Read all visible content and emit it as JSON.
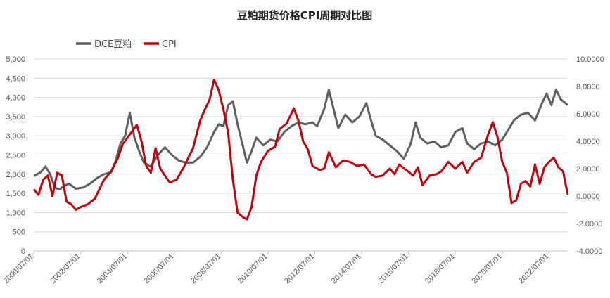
{
  "chart_data": {
    "type": "line",
    "title": "豆粕期货价格CPI周期对比图",
    "xlabel": "",
    "ylabel": "",
    "x_tick_labels": [
      "2000/07/01",
      "2002/07/01",
      "2004/07/01",
      "2006/07/01",
      "2008/07/01",
      "2010/07/01",
      "2012/07/01",
      "2014/07/01",
      "2016/07/01",
      "2018/07/01",
      "2020/07/01",
      "2022/07/01"
    ],
    "y_left": {
      "range": [
        0,
        5000
      ],
      "ticks": [
        "0",
        "500",
        "1,000",
        "1,500",
        "2,000",
        "2,500",
        "3,000",
        "3,500",
        "4,000",
        "4,500",
        "5,000"
      ]
    },
    "y_right": {
      "range": [
        -4,
        10
      ],
      "ticks": [
        "-4.0000",
        "-2.0000",
        "0.0000",
        "2.0000",
        "4.0000",
        "6.0000",
        "8.0000",
        "10.0000"
      ]
    },
    "x_range": [
      2000.5,
      2023.3
    ],
    "grid": true,
    "legend_position": "top-left",
    "series": [
      {
        "name": "DCE豆粕",
        "axis": "left",
        "color": "#5f5f5f",
        "points": [
          [
            2000.5,
            1950
          ],
          [
            2000.8,
            2050
          ],
          [
            2001.0,
            2200
          ],
          [
            2001.2,
            2000
          ],
          [
            2001.4,
            1650
          ],
          [
            2001.6,
            1600
          ],
          [
            2001.8,
            1700
          ],
          [
            2002.0,
            1750
          ],
          [
            2002.3,
            1620
          ],
          [
            2002.6,
            1650
          ],
          [
            2002.9,
            1750
          ],
          [
            2003.2,
            1900
          ],
          [
            2003.5,
            2000
          ],
          [
            2003.8,
            2050
          ],
          [
            2004.0,
            2350
          ],
          [
            2004.2,
            2800
          ],
          [
            2004.4,
            3000
          ],
          [
            2004.6,
            3600
          ],
          [
            2004.8,
            2950
          ],
          [
            2005.0,
            2600
          ],
          [
            2005.2,
            2300
          ],
          [
            2005.5,
            2200
          ],
          [
            2005.8,
            2500
          ],
          [
            2006.1,
            2700
          ],
          [
            2006.4,
            2500
          ],
          [
            2006.7,
            2350
          ],
          [
            2007.0,
            2300
          ],
          [
            2007.3,
            2300
          ],
          [
            2007.6,
            2450
          ],
          [
            2007.9,
            2700
          ],
          [
            2008.2,
            3100
          ],
          [
            2008.4,
            3300
          ],
          [
            2008.6,
            3250
          ],
          [
            2008.8,
            3800
          ],
          [
            2009.0,
            3900
          ],
          [
            2009.2,
            3300
          ],
          [
            2009.4,
            2800
          ],
          [
            2009.6,
            2300
          ],
          [
            2009.8,
            2600
          ],
          [
            2010.0,
            2950
          ],
          [
            2010.3,
            2750
          ],
          [
            2010.6,
            2900
          ],
          [
            2010.9,
            2850
          ],
          [
            2011.2,
            3100
          ],
          [
            2011.5,
            3250
          ],
          [
            2011.8,
            3350
          ],
          [
            2012.1,
            3300
          ],
          [
            2012.4,
            3350
          ],
          [
            2012.6,
            3250
          ],
          [
            2012.9,
            3700
          ],
          [
            2013.1,
            4200
          ],
          [
            2013.3,
            3700
          ],
          [
            2013.5,
            3200
          ],
          [
            2013.8,
            3550
          ],
          [
            2014.1,
            3350
          ],
          [
            2014.4,
            3500
          ],
          [
            2014.7,
            3850
          ],
          [
            2014.9,
            3400
          ],
          [
            2015.1,
            3000
          ],
          [
            2015.4,
            2900
          ],
          [
            2015.7,
            2750
          ],
          [
            2016.0,
            2600
          ],
          [
            2016.3,
            2400
          ],
          [
            2016.6,
            2800
          ],
          [
            2016.8,
            3350
          ],
          [
            2017.0,
            2950
          ],
          [
            2017.3,
            2800
          ],
          [
            2017.6,
            2850
          ],
          [
            2017.9,
            2700
          ],
          [
            2018.2,
            2750
          ],
          [
            2018.5,
            3100
          ],
          [
            2018.8,
            3200
          ],
          [
            2019.0,
            2800
          ],
          [
            2019.3,
            2650
          ],
          [
            2019.6,
            2800
          ],
          [
            2019.9,
            2850
          ],
          [
            2020.2,
            2750
          ],
          [
            2020.5,
            2900
          ],
          [
            2020.8,
            3200
          ],
          [
            2021.0,
            3400
          ],
          [
            2021.3,
            3550
          ],
          [
            2021.6,
            3600
          ],
          [
            2021.9,
            3400
          ],
          [
            2022.2,
            3850
          ],
          [
            2022.4,
            4100
          ],
          [
            2022.6,
            3800
          ],
          [
            2022.8,
            4200
          ],
          [
            2023.0,
            3950
          ],
          [
            2023.3,
            3800
          ]
        ]
      },
      {
        "name": "CPI",
        "axis": "right",
        "color": "#c0000d",
        "points": [
          [
            2000.5,
            0.5
          ],
          [
            2000.7,
            0.1
          ],
          [
            2000.9,
            1.2
          ],
          [
            2001.1,
            1.5
          ],
          [
            2001.3,
            0.0
          ],
          [
            2001.5,
            1.7
          ],
          [
            2001.7,
            1.5
          ],
          [
            2001.9,
            -0.4
          ],
          [
            2002.1,
            -0.6
          ],
          [
            2002.3,
            -1.0
          ],
          [
            2002.5,
            -0.8
          ],
          [
            2002.8,
            -0.6
          ],
          [
            2003.1,
            -0.2
          ],
          [
            2003.3,
            0.5
          ],
          [
            2003.5,
            1.2
          ],
          [
            2003.8,
            1.8
          ],
          [
            2004.1,
            2.8
          ],
          [
            2004.3,
            3.8
          ],
          [
            2004.6,
            4.5
          ],
          [
            2004.9,
            5.2
          ],
          [
            2005.1,
            4.0
          ],
          [
            2005.3,
            2.2
          ],
          [
            2005.5,
            1.7
          ],
          [
            2005.7,
            3.5
          ],
          [
            2005.9,
            2.0
          ],
          [
            2006.1,
            1.5
          ],
          [
            2006.3,
            1.0
          ],
          [
            2006.6,
            1.2
          ],
          [
            2006.9,
            2.1
          ],
          [
            2007.1,
            2.8
          ],
          [
            2007.3,
            3.5
          ],
          [
            2007.6,
            5.5
          ],
          [
            2007.8,
            6.3
          ],
          [
            2008.0,
            7.0
          ],
          [
            2008.2,
            8.5
          ],
          [
            2008.4,
            7.7
          ],
          [
            2008.6,
            6.3
          ],
          [
            2008.8,
            4.6
          ],
          [
            2009.0,
            1.2
          ],
          [
            2009.2,
            -1.2
          ],
          [
            2009.4,
            -1.5
          ],
          [
            2009.6,
            -1.7
          ],
          [
            2009.8,
            -0.8
          ],
          [
            2010.0,
            1.5
          ],
          [
            2010.2,
            2.5
          ],
          [
            2010.5,
            3.3
          ],
          [
            2010.8,
            3.6
          ],
          [
            2011.0,
            4.9
          ],
          [
            2011.3,
            5.3
          ],
          [
            2011.6,
            6.4
          ],
          [
            2011.8,
            5.5
          ],
          [
            2012.0,
            4.0
          ],
          [
            2012.2,
            3.4
          ],
          [
            2012.4,
            2.2
          ],
          [
            2012.7,
            1.9
          ],
          [
            2012.9,
            2.0
          ],
          [
            2013.1,
            3.2
          ],
          [
            2013.4,
            2.1
          ],
          [
            2013.7,
            2.6
          ],
          [
            2014.0,
            2.5
          ],
          [
            2014.3,
            2.2
          ],
          [
            2014.6,
            2.3
          ],
          [
            2014.9,
            1.6
          ],
          [
            2015.1,
            1.4
          ],
          [
            2015.4,
            1.5
          ],
          [
            2015.7,
            2.0
          ],
          [
            2015.9,
            1.6
          ],
          [
            2016.1,
            2.3
          ],
          [
            2016.4,
            1.9
          ],
          [
            2016.7,
            1.5
          ],
          [
            2016.9,
            2.1
          ],
          [
            2017.1,
            0.8
          ],
          [
            2017.4,
            1.5
          ],
          [
            2017.7,
            1.6
          ],
          [
            2017.9,
            1.8
          ],
          [
            2018.2,
            2.5
          ],
          [
            2018.5,
            2.0
          ],
          [
            2018.8,
            2.5
          ],
          [
            2019.0,
            1.7
          ],
          [
            2019.3,
            2.5
          ],
          [
            2019.6,
            2.8
          ],
          [
            2019.9,
            4.5
          ],
          [
            2020.1,
            5.4
          ],
          [
            2020.3,
            4.3
          ],
          [
            2020.5,
            2.5
          ],
          [
            2020.7,
            1.7
          ],
          [
            2020.9,
            -0.5
          ],
          [
            2021.1,
            -0.3
          ],
          [
            2021.3,
            0.9
          ],
          [
            2021.5,
            1.1
          ],
          [
            2021.7,
            0.7
          ],
          [
            2021.9,
            2.3
          ],
          [
            2022.1,
            0.9
          ],
          [
            2022.3,
            2.1
          ],
          [
            2022.5,
            2.5
          ],
          [
            2022.7,
            2.8
          ],
          [
            2022.9,
            2.1
          ],
          [
            2023.1,
            1.8
          ],
          [
            2023.3,
            0.1
          ]
        ]
      }
    ]
  }
}
